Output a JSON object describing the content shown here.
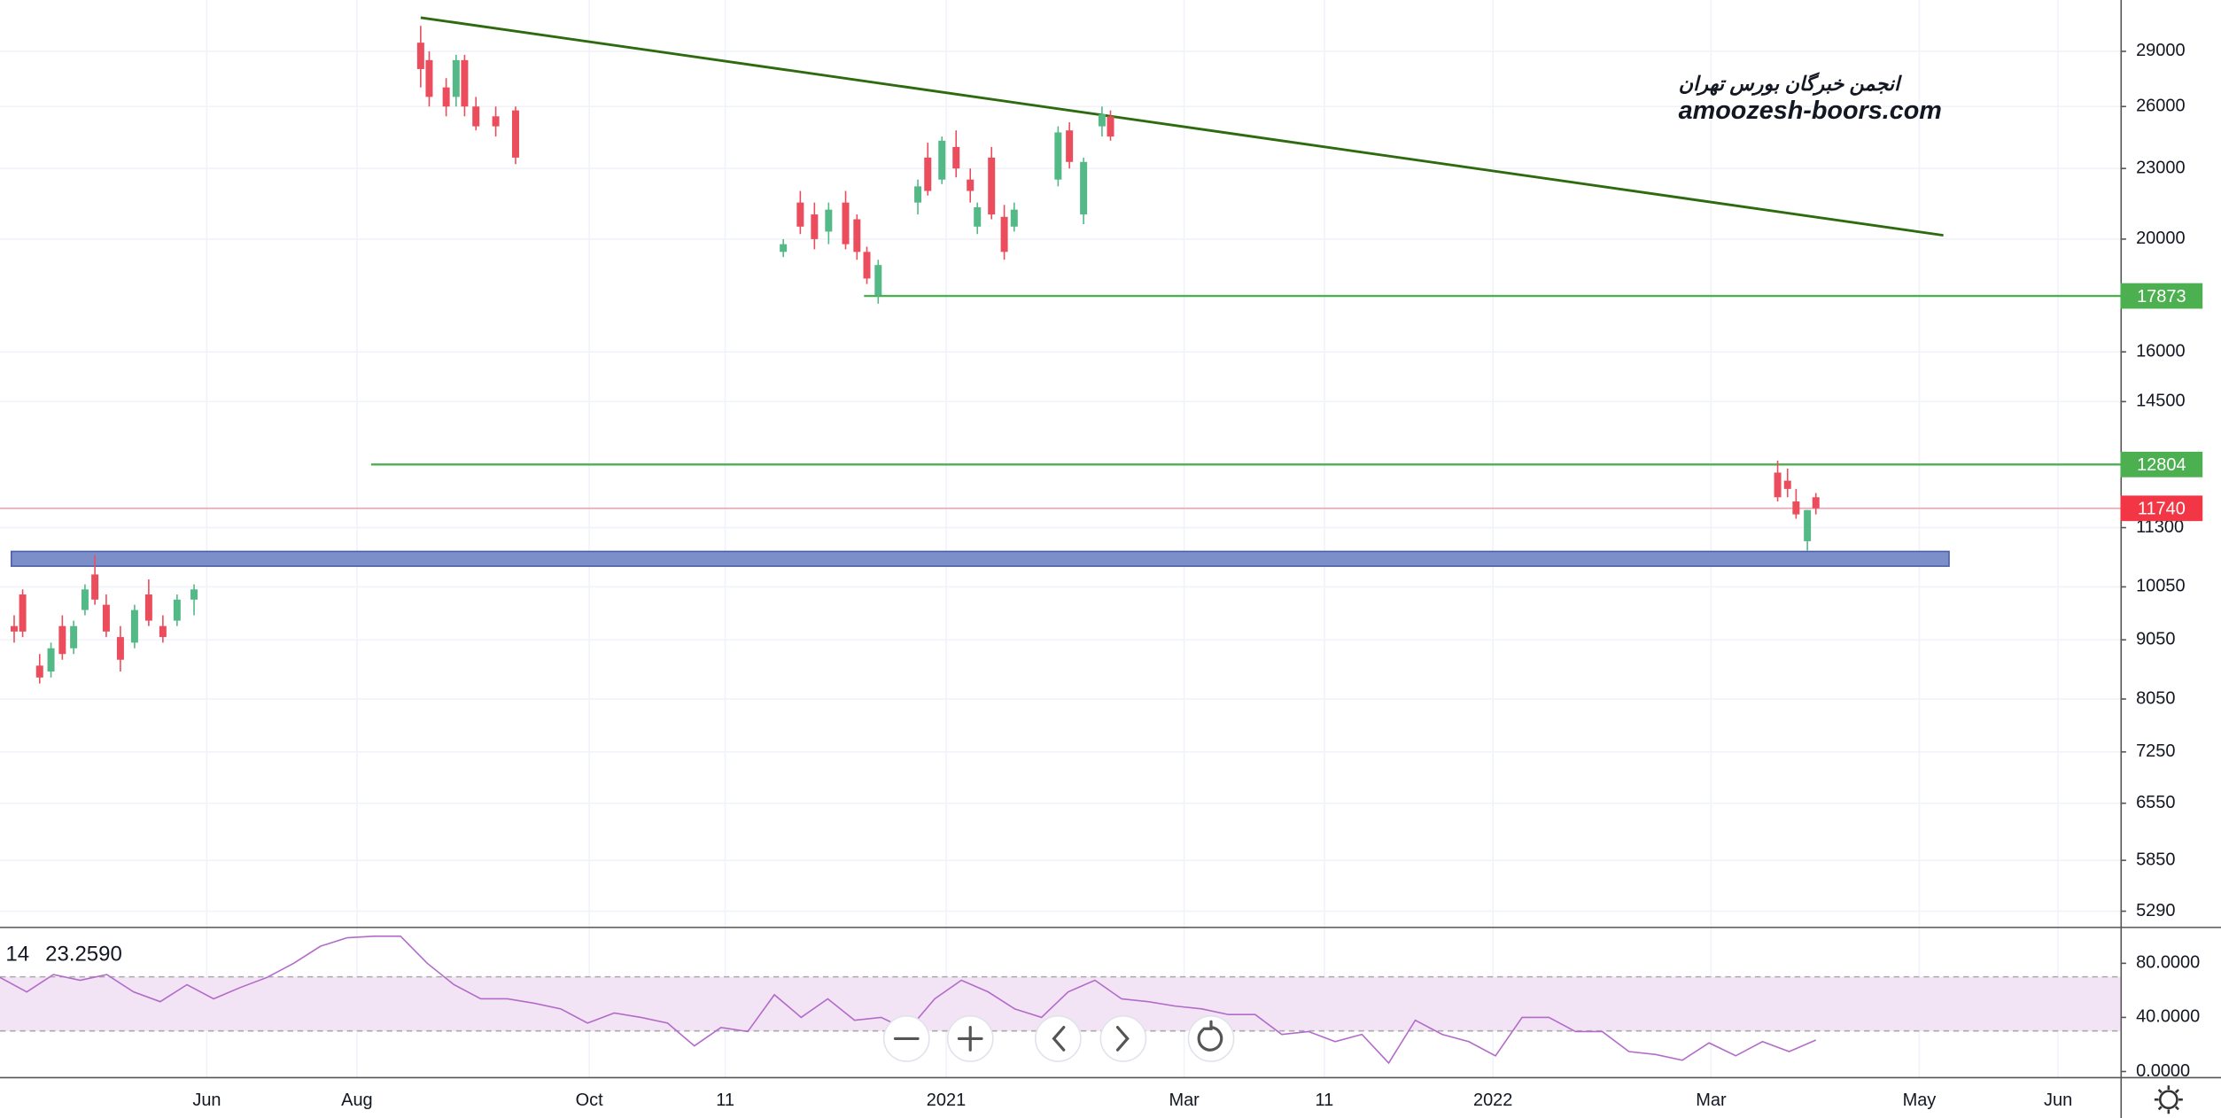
{
  "chart_data": {
    "type": "candlestick",
    "log_scale": true,
    "grid": true,
    "watermark": [
      "انجمن خبرگان بورس تهران",
      "amoozesh-boors.com"
    ],
    "watermark_color": "#2e7d0f",
    "x_labels": [
      "Jun",
      "Aug",
      "Oct",
      "11",
      "2021",
      "Mar",
      "11",
      "2022",
      "Mar",
      "May",
      "Jun"
    ],
    "ylim": [
      5130,
      32100
    ],
    "yticks": [
      29000,
      26000,
      23000,
      20000,
      16000,
      14500,
      11300,
      10050,
      9050,
      8050,
      7250,
      6550,
      5850,
      5290
    ],
    "up_color": "#53b987",
    "down_color": "#eb4d5c",
    "open": [
      9300,
      9900,
      8600,
      8500,
      9300,
      8900,
      9600,
      10300,
      9700,
      9100,
      9000,
      9900,
      9300,
      9400,
      9800,
      29500,
      28500,
      27000,
      26500,
      28500,
      26000,
      25500,
      25800,
      19500,
      21500,
      21000,
      20300,
      21500,
      20800,
      19500,
      17900,
      21500,
      23500,
      22500,
      24000,
      22500,
      20500,
      23500,
      20900,
      20500,
      22500,
      24800,
      21000,
      25000,
      25500,
      12600,
      12400,
      11900,
      11000,
      12000
    ],
    "high": [
      9500,
      10000,
      8800,
      9000,
      9500,
      9400,
      10100,
      10700,
      9900,
      9300,
      9700,
      10200,
      9500,
      9900,
      10100,
      30500,
      29000,
      27500,
      28800,
      28800,
      26500,
      26000,
      26000,
      20000,
      22000,
      21500,
      21500,
      22000,
      21000,
      19700,
      19200,
      22500,
      24200,
      24500,
      24800,
      23000,
      21500,
      24000,
      21400,
      21500,
      25000,
      25200,
      23500,
      26000,
      25800,
      12900,
      12700,
      12200,
      11700,
      12100
    ],
    "low": [
      9000,
      9100,
      8300,
      8400,
      8700,
      8800,
      9500,
      9700,
      9100,
      8500,
      8900,
      9300,
      9000,
      9300,
      9500,
      27000,
      26000,
      25500,
      26000,
      25500,
      24800,
      24500,
      23200,
      19300,
      20200,
      19600,
      19800,
      19600,
      19200,
      18300,
      17600,
      21000,
      21800,
      22300,
      22600,
      21500,
      20200,
      20800,
      19200,
      20300,
      22200,
      23000,
      20600,
      24500,
      24300,
      11900,
      12000,
      11500,
      10800,
      11600
    ],
    "close": [
      9200,
      9200,
      8400,
      8900,
      8800,
      9300,
      10000,
      9800,
      9200,
      8700,
      9600,
      9400,
      9100,
      9800,
      10000,
      28000,
      26500,
      26000,
      28500,
      26000,
      25000,
      25000,
      23500,
      19800,
      20500,
      20000,
      21200,
      19800,
      19500,
      18500,
      19000,
      22200,
      22000,
      24300,
      23000,
      22000,
      21300,
      21000,
      19500,
      21200,
      24700,
      23300,
      23300,
      25600,
      24500,
      12000,
      12200,
      11600,
      11700,
      11740
    ],
    "trendline": {
      "start": 31000,
      "end": 20150,
      "color": "#2e6b0e"
    },
    "zone": {
      "low": 10470,
      "high": 10780,
      "color": "#7d8fc9"
    },
    "levels": [
      17873,
      12804
    ],
    "level_color": "#4caf50",
    "last_price": 11740,
    "last_color": "#f23645",
    "rsi": {
      "length": 14,
      "last": 23.259,
      "last_label": "23.2590",
      "color": "#b36bc9",
      "ylim": [
        -4,
        106
      ],
      "band": [
        30,
        70
      ],
      "yticks": [
        {
          "value": 80,
          "label": "80.0000"
        },
        {
          "value": 40,
          "label": "40.0000"
        },
        {
          "value": 0,
          "label": "0.0000"
        }
      ],
      "values": [
        69.5,
        58.9,
        71.6,
        67.4,
        71.6,
        58.9,
        51.6,
        64.2,
        53.7,
        62.1,
        69.5,
        80,
        92.6,
        98.9,
        100,
        100,
        80,
        64.2,
        53.7,
        53.7,
        50.5,
        46.3,
        35.8,
        43.2,
        40,
        35.8,
        18.9,
        32.6,
        29.5,
        56.8,
        40,
        53.7,
        37.9,
        40,
        30.5,
        53.7,
        67.4,
        58.9,
        46.3,
        40,
        58.9,
        67.4,
        53.7,
        51.6,
        48.4,
        46.3,
        42.1,
        42.1,
        27.4,
        29.5,
        22.1,
        27.4,
        6.3,
        37.9,
        27.4,
        22.1,
        11.6,
        40,
        40,
        29.5,
        29.5,
        14.7,
        12.6,
        8.4,
        21.1,
        11.6,
        22.1,
        14.7,
        23.259
      ]
    }
  }
}
